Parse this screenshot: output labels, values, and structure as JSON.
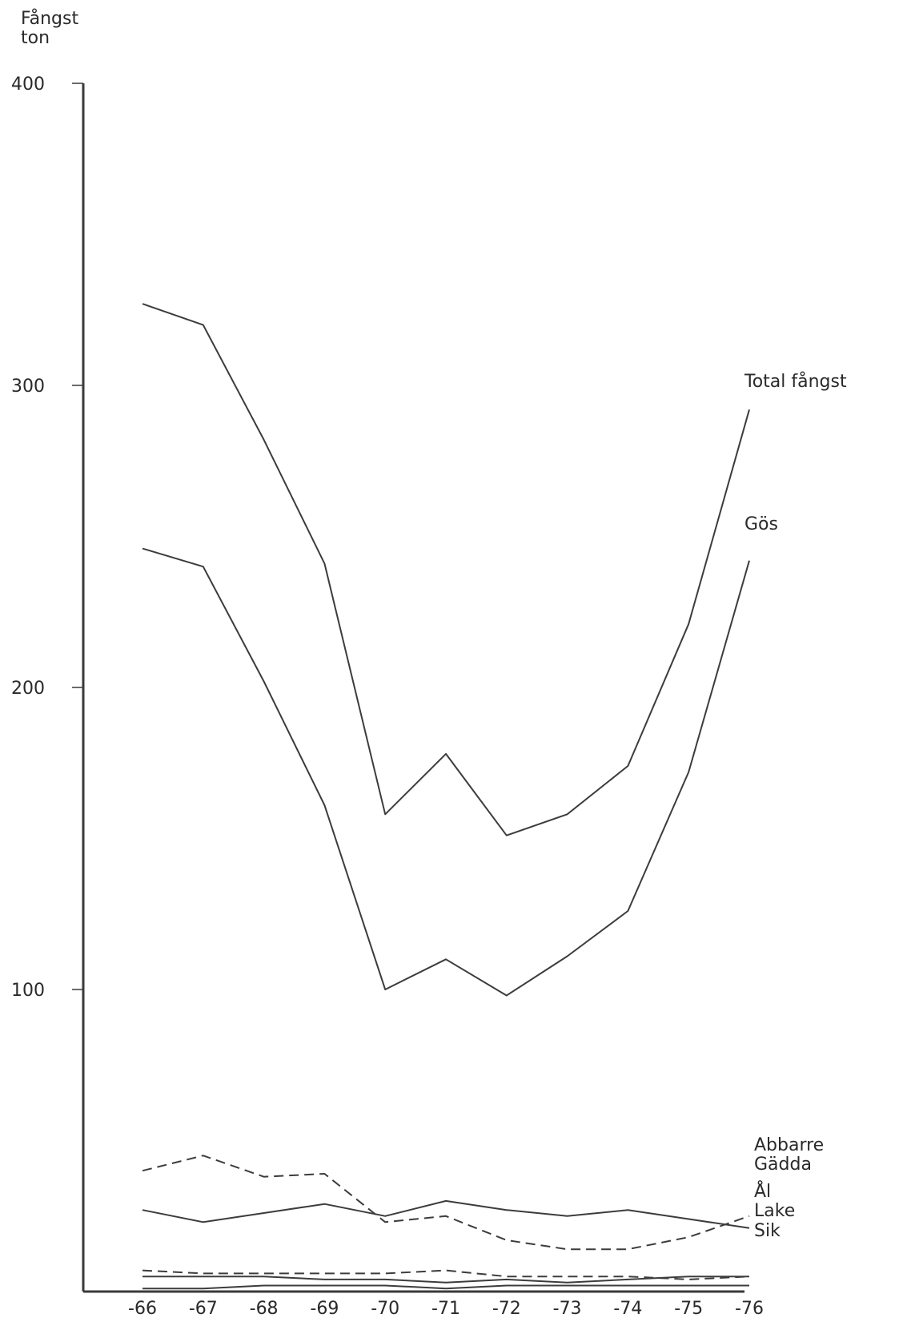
{
  "chart_data": {
    "type": "line",
    "ylabel": [
      "Fångst",
      "ton"
    ],
    "xlabel": "",
    "ylim": [
      0,
      400
    ],
    "yticks": [
      100,
      200,
      300,
      400
    ],
    "categories": [
      "-66",
      "-67",
      "-68",
      "-69",
      "-70",
      "-71",
      "-72",
      "-73",
      "-74",
      "-75",
      "-76"
    ],
    "series": [
      {
        "name": "Total fångst",
        "style": "solid",
        "values": [
          327,
          320,
          282,
          241,
          158,
          178,
          151,
          158,
          174,
          221,
          292
        ]
      },
      {
        "name": "Gös",
        "style": "solid",
        "values": [
          246,
          240,
          202,
          161,
          100,
          110,
          98,
          111,
          126,
          172,
          242
        ]
      },
      {
        "name": "Abbarre",
        "style": "dashed",
        "values": [
          40,
          45,
          38,
          39,
          23,
          25,
          17,
          14,
          14,
          18,
          25
        ]
      },
      {
        "name": "Gädda",
        "style": "solid",
        "values": [
          27,
          23,
          26,
          29,
          25,
          30,
          27,
          25,
          27,
          24,
          21
        ]
      },
      {
        "name": "Ål",
        "style": "dashed",
        "values": [
          7,
          6,
          6,
          6,
          6,
          7,
          5,
          5,
          5,
          4,
          5
        ]
      },
      {
        "name": "Lake",
        "style": "solid",
        "values": [
          5,
          5,
          5,
          4,
          4,
          3,
          4,
          3,
          4,
          5,
          5
        ]
      },
      {
        "name": "Sik",
        "style": "solid",
        "values": [
          1,
          1,
          2,
          2,
          2,
          1,
          2,
          2,
          2,
          2,
          2
        ]
      }
    ]
  }
}
